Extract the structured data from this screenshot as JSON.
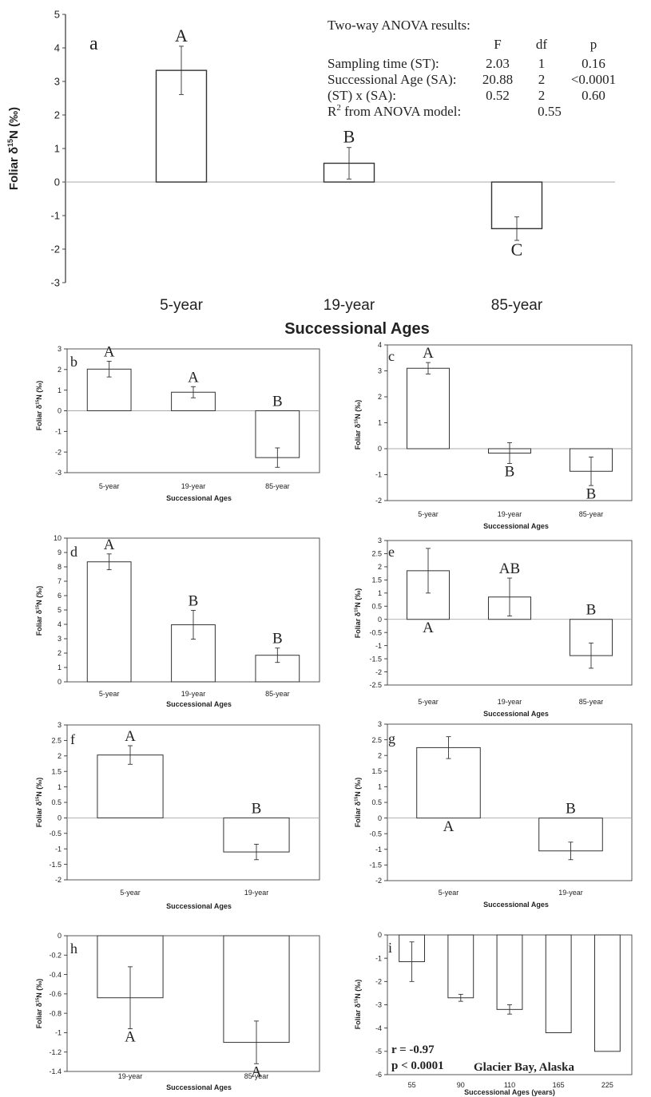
{
  "chart_data": [
    {
      "panel": "a",
      "type": "bar",
      "ylabel": "Foliar δ",
      "ylabel_sup": "15",
      "ylabel_unit": "N (‰)",
      "xlabel": "Successional Ages",
      "categories": [
        "5-year",
        "19-year",
        "85-year"
      ],
      "values": [
        3.33,
        0.56,
        -1.39
      ],
      "errors": [
        0.72,
        0.47,
        0.35
      ],
      "letters": [
        "A",
        "B",
        "C"
      ],
      "letter_pos": [
        "above",
        "above",
        "below"
      ],
      "ylim": [
        -3,
        5
      ],
      "ytick_labels": [
        "-3",
        "-2",
        "-1",
        "0",
        "1",
        "2",
        "3",
        "4",
        "5"
      ],
      "anova": {
        "title": "Two-way ANOVA results:",
        "headers": [
          "F",
          "df",
          "p"
        ],
        "rows": [
          {
            "label": "Sampling time (ST):",
            "f": "2.03",
            "df": "1",
            "p": "0.16"
          },
          {
            "label": "Successional Age (SA):",
            "f": "20.88",
            "df": "2",
            "p": "<0.0001"
          },
          {
            "label": "(ST) x (SA):",
            "f": "0.52",
            "df": "2",
            "p": "0.60"
          },
          {
            "label": "R",
            "label_sup": "2",
            "label_rest": " from ANOVA model:",
            "f": "0.55",
            "df": "",
            "p": ""
          }
        ]
      }
    },
    {
      "panel": "b",
      "type": "bar",
      "ylabel": "Foliar δ",
      "ylabel_sup": "15",
      "ylabel_unit": "N (‰)",
      "xlabel": "Successional Ages",
      "categories": [
        "5-year",
        "19-year",
        "85-year"
      ],
      "values": [
        2.02,
        0.9,
        -2.27
      ],
      "errors": [
        0.38,
        0.27,
        0.47
      ],
      "letters": [
        "A",
        "A",
        "B"
      ],
      "letter_pos": [
        "above",
        "above",
        "above"
      ],
      "ylim": [
        -3,
        3
      ],
      "ytick_labels": [
        "-3",
        "-2",
        "-1",
        "0",
        "1",
        "2",
        "3"
      ]
    },
    {
      "panel": "c",
      "type": "bar",
      "ylabel": "Foliar δ",
      "ylabel_sup": "15",
      "ylabel_unit": "N (‰)",
      "xlabel": "Successional Ages",
      "categories": [
        "5-year",
        "19-year",
        "85-year"
      ],
      "values": [
        3.1,
        -0.17,
        -0.87
      ],
      "errors": [
        0.22,
        0.4,
        0.55
      ],
      "letters": [
        "A",
        "B",
        "B"
      ],
      "letter_pos": [
        "above",
        "below",
        "below"
      ],
      "ylim": [
        -2,
        4
      ],
      "ytick_labels": [
        "-2",
        "-1",
        "0",
        "1",
        "2",
        "3",
        "4"
      ]
    },
    {
      "panel": "d",
      "type": "bar",
      "ylabel": "Foliar δ",
      "ylabel_sup": "15",
      "ylabel_unit": "N (‰)",
      "xlabel": "Successional Ages",
      "categories": [
        "5-year",
        "19-year",
        "85-year"
      ],
      "values": [
        8.35,
        3.97,
        1.85
      ],
      "errors": [
        0.55,
        1.0,
        0.5
      ],
      "letters": [
        "A",
        "B",
        "B"
      ],
      "letter_pos": [
        "above",
        "above",
        "above"
      ],
      "ylim": [
        0,
        10
      ],
      "ytick_labels": [
        "0",
        "1",
        "2",
        "3",
        "4",
        "5",
        "6",
        "7",
        "8",
        "9",
        "10"
      ]
    },
    {
      "panel": "e",
      "type": "bar",
      "ylabel": "Foliar δ",
      "ylabel_sup": "15",
      "ylabel_unit": "N (‰)",
      "xlabel": "Successional Ages",
      "categories": [
        "5-year",
        "19-year",
        "85-year"
      ],
      "values": [
        1.85,
        0.85,
        -1.38
      ],
      "errors": [
        0.85,
        0.72,
        0.48
      ],
      "letters": [
        "A",
        "AB",
        "B"
      ],
      "letter_pos": [
        "below",
        "above",
        "above"
      ],
      "ylim": [
        -2.5,
        3
      ],
      "ytick_labels": [
        "-2.5",
        "-2",
        "-1.5",
        "-1",
        "-0.5",
        "0",
        "0.5",
        "1",
        "1.5",
        "2",
        "2.5",
        "3"
      ]
    },
    {
      "panel": "f",
      "type": "bar",
      "ylabel": "Foliar δ",
      "ylabel_sup": "15",
      "ylabel_unit": "N (‰)",
      "xlabel": "Successional Ages",
      "categories": [
        "5-year",
        "19-year"
      ],
      "values": [
        2.03,
        -1.1
      ],
      "errors": [
        0.3,
        0.25
      ],
      "letters": [
        "A",
        "B"
      ],
      "letter_pos": [
        "above",
        "above"
      ],
      "ylim": [
        -2,
        3
      ],
      "ytick_labels": [
        "-2",
        "-1.5",
        "-1",
        "-0.5",
        "0",
        "0.5",
        "1",
        "1.5",
        "2",
        "2.5",
        "3"
      ]
    },
    {
      "panel": "g",
      "type": "bar",
      "ylabel": "Foliar δ",
      "ylabel_sup": "15",
      "ylabel_unit": "N (‰)",
      "xlabel": "Successional Ages",
      "categories": [
        "5-year",
        "19-year"
      ],
      "values": [
        2.25,
        -1.05
      ],
      "errors": [
        0.35,
        0.28
      ],
      "letters": [
        "A",
        "B"
      ],
      "letter_pos": [
        "below",
        "above"
      ],
      "ylim": [
        -2,
        3
      ],
      "ytick_labels": [
        "-2",
        "-1.5",
        "-1",
        "-0.5",
        "0",
        "0.5",
        "1",
        "1.5",
        "2",
        "2.5",
        "3"
      ]
    },
    {
      "panel": "h",
      "type": "bar",
      "ylabel": "Foliar δ",
      "ylabel_sup": "15",
      "ylabel_unit": "N (‰)",
      "xlabel": "Successional Ages",
      "categories": [
        "19-year",
        "85-year"
      ],
      "values": [
        -0.64,
        -1.1
      ],
      "errors": [
        0.32,
        0.22
      ],
      "letters": [
        "A",
        "A"
      ],
      "letter_pos": [
        "below",
        "below"
      ],
      "ylim": [
        -1.4,
        0
      ],
      "ytick_labels": [
        "-1.4",
        "-1.2",
        "-1",
        "-0.8",
        "-0.6",
        "-0.4",
        "-0.2",
        "0"
      ]
    },
    {
      "panel": "i",
      "type": "bar",
      "ylabel": "Foliar δ",
      "ylabel_sup": "15",
      "ylabel_unit": "N (‰)",
      "xlabel": "Successional Ages (years)",
      "categories": [
        "55",
        "90",
        "110",
        "165",
        "225"
      ],
      "values": [
        -1.15,
        -2.7,
        -3.2,
        -4.2,
        -5.0
      ],
      "errors": [
        0.85,
        0.15,
        0.2,
        0,
        0
      ],
      "letters": [
        "",
        "",
        "",
        "",
        ""
      ],
      "letter_pos": [
        "above",
        "above",
        "above",
        "above",
        "above"
      ],
      "ylim": [
        -6,
        0
      ],
      "ytick_labels": [
        "-6",
        "-5",
        "-4",
        "-3",
        "-2",
        "-1",
        "0"
      ],
      "stats": [
        "r = -0.97",
        "p < 0.0001"
      ],
      "location": "Glacier Bay, Alaska"
    }
  ]
}
